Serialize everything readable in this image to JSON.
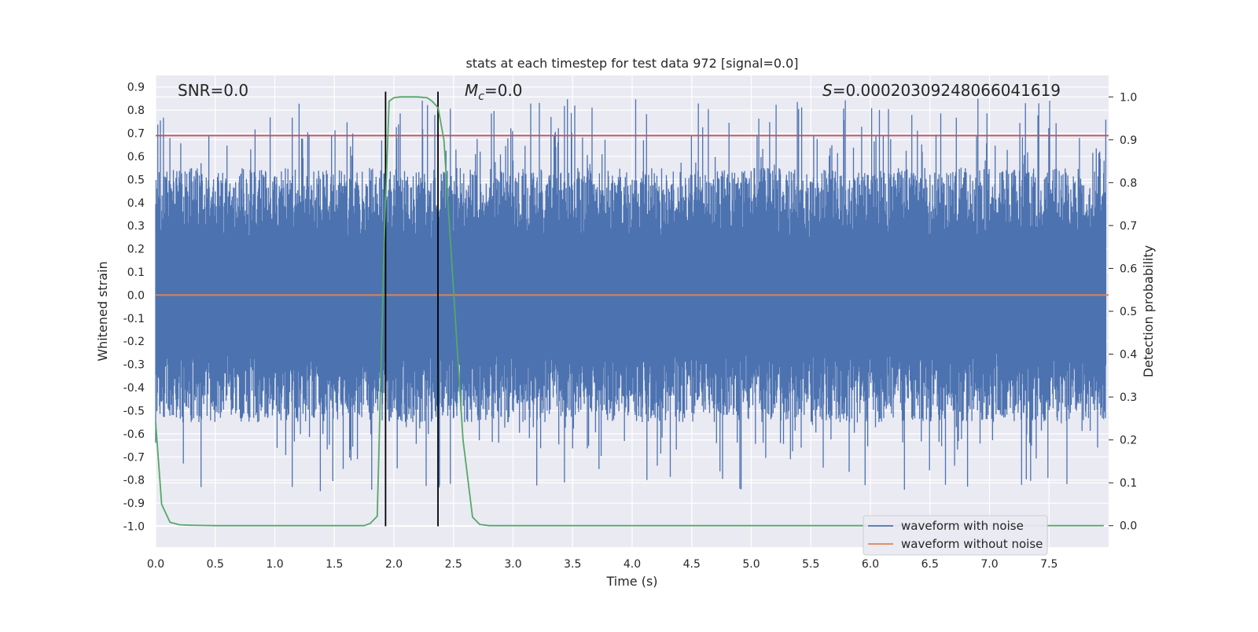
{
  "chart_data": {
    "type": "line",
    "title": "stats at each timestep for test data 972 [signal=0.0]",
    "xlabel": "Time (s)",
    "ylabel": "Whitened strain",
    "y2label": "Detection probability",
    "xlim": [
      0.0,
      8.0
    ],
    "ylim": [
      -1.09,
      0.95
    ],
    "y2lim": [
      -0.05,
      1.05
    ],
    "x_ticks": [
      "0.0",
      "0.5",
      "1.0",
      "1.5",
      "2.0",
      "2.5",
      "3.0",
      "3.5",
      "4.0",
      "4.5",
      "5.0",
      "5.5",
      "6.0",
      "6.5",
      "7.0",
      "7.5"
    ],
    "y_ticks": [
      "0.9",
      "0.8",
      "0.7",
      "0.6",
      "0.5",
      "0.4",
      "0.3",
      "0.2",
      "0.1",
      "0.0",
      "-0.1",
      "-0.2",
      "-0.3",
      "-0.4",
      "-0.5",
      "-0.6",
      "-0.7",
      "-0.8",
      "-0.9",
      "-1.0"
    ],
    "y2_ticks": [
      "1.0",
      "0.9",
      "0.8",
      "0.7",
      "0.6",
      "0.5",
      "0.4",
      "0.3",
      "0.2",
      "0.1",
      "0.0"
    ],
    "grid": true,
    "annotations": {
      "snr": "SNR=0.0",
      "mc_symbol": "M",
      "mc_sub": "c",
      "mc_value": "=0.0",
      "s_symbol": "S",
      "s_value": "=0.00020309248066041619"
    },
    "legend": {
      "placement": "lower-right",
      "entries": [
        {
          "name": "waveform with noise",
          "color": "#4c72b0"
        },
        {
          "name": "waveform without noise",
          "color": "#dd8452"
        }
      ]
    },
    "series": [
      {
        "name": "waveform with noise",
        "axis": "left",
        "color": "#4c72b0",
        "description_note": "dense noise between approx -0.5 and 0.5 with spikes up to about 0.88 and down to about -0.98"
      },
      {
        "name": "waveform without noise",
        "axis": "left",
        "color": "#dd8452",
        "x": [
          0.0,
          8.0
        ],
        "y": [
          0.0,
          0.0
        ]
      },
      {
        "name": "detection probability",
        "axis": "right",
        "color": "#55a868",
        "x": [
          0.0,
          0.05,
          0.12,
          0.2,
          0.3,
          0.5,
          1.0,
          1.5,
          1.75,
          1.8,
          1.86,
          1.92,
          1.96,
          2.0,
          2.05,
          2.1,
          2.2,
          2.28,
          2.32,
          2.37,
          2.42,
          2.5,
          2.58,
          2.66,
          2.72,
          2.8,
          3.0,
          4.0,
          5.0,
          6.0,
          7.0,
          7.5,
          7.96
        ],
        "y": [
          0.24,
          0.05,
          0.008,
          0.002,
          0.001,
          0.0,
          0.0,
          0.0,
          0.0,
          0.005,
          0.022,
          0.68,
          0.99,
          0.998,
          1.0,
          1.0,
          1.0,
          0.998,
          0.99,
          0.975,
          0.9,
          0.55,
          0.2,
          0.02,
          0.003,
          0.0,
          0.0,
          0.0,
          0.0,
          0.0,
          0.0,
          0.0,
          0.0
        ]
      }
    ],
    "threshold_line": {
      "axis": "left",
      "y": 0.69,
      "color": "#c44e52"
    },
    "vertical_lines": {
      "x": [
        1.93,
        2.37
      ],
      "color": "#000000"
    }
  }
}
